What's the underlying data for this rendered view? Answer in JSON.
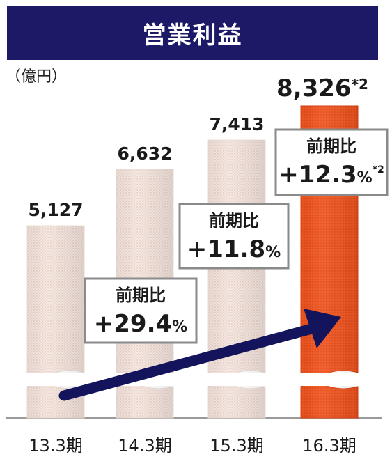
{
  "title": "営業利益",
  "unit": "（億円）",
  "chart_data": {
    "type": "bar",
    "categories": [
      "13.3期",
      "14.3期",
      "15.3期",
      "16.3期"
    ],
    "values": [
      5127,
      6632,
      7413,
      8326
    ],
    "value_labels": [
      "5,127",
      "6,632",
      "7,413",
      "8,326"
    ],
    "last_value_note": "*2",
    "growth_labels": [
      {
        "label": "前期比",
        "value": "+29.4",
        "unit": "%",
        "note": ""
      },
      {
        "label": "前期比",
        "value": "+11.8",
        "unit": "%",
        "note": ""
      },
      {
        "label": "前期比",
        "value": "+12.3",
        "unit": "%",
        "note": "*2"
      }
    ],
    "colors": {
      "bar": "#f5e6df",
      "highlight": "#f0521c",
      "title_bg": "#1c1a66",
      "arrow": "#14145c"
    }
  }
}
